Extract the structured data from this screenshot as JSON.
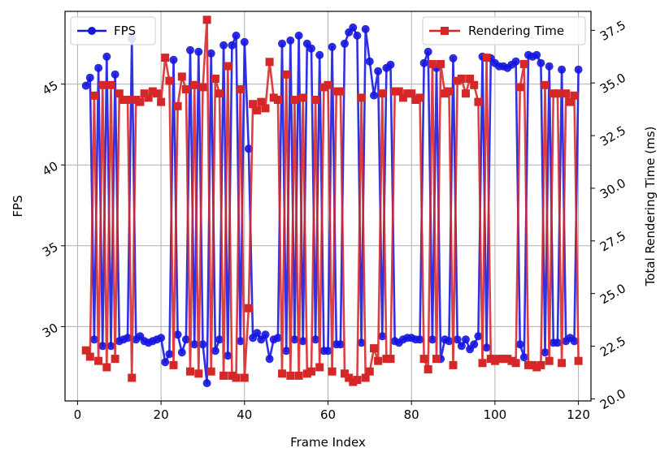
{
  "chart_data": {
    "type": "line",
    "title": "",
    "xlabel": "Frame Index",
    "ylabel_left": "FPS",
    "ylabel_right": "Total Rendering Time (ms)",
    "xlim": [
      -3,
      123
    ],
    "ylim_left": [
      25.4,
      49.5
    ],
    "ylim_right": [
      19.9,
      38.4
    ],
    "xticks": [
      0,
      20,
      40,
      60,
      80,
      100,
      120
    ],
    "yticks_left": [
      30,
      35,
      40,
      45
    ],
    "yticks_right": [
      20.0,
      22.5,
      25.0,
      27.5,
      30.0,
      32.5,
      35.0,
      37.5
    ],
    "xtick_labels": [
      "0",
      "20",
      "40",
      "60",
      "80",
      "100",
      "120"
    ],
    "ytick_labels_left": [
      "30",
      "35",
      "40",
      "45"
    ],
    "ytick_labels_right": [
      "20.0",
      "22.5",
      "25.0",
      "27.5",
      "30.0",
      "32.5",
      "35.0",
      "37.5"
    ],
    "grid": true,
    "series": [
      {
        "name": "FPS",
        "axis": "left",
        "color": "#1515e0",
        "marker": "circle",
        "x": [
          2,
          3,
          4,
          5,
          6,
          7,
          8,
          9,
          10,
          11,
          12,
          13,
          14,
          15,
          16,
          17,
          18,
          19,
          20,
          21,
          22,
          23,
          24,
          25,
          26,
          27,
          28,
          29,
          30,
          31,
          32,
          33,
          34,
          35,
          36,
          37,
          38,
          39,
          40,
          41,
          42,
          43,
          44,
          45,
          46,
          47,
          48,
          49,
          50,
          51,
          52,
          53,
          54,
          55,
          56,
          57,
          58,
          59,
          60,
          61,
          62,
          63,
          64,
          65,
          66,
          67,
          68,
          69,
          70,
          71,
          72,
          73,
          74,
          75,
          76,
          77,
          78,
          79,
          80,
          81,
          82,
          83,
          84,
          85,
          86,
          87,
          88,
          89,
          90,
          91,
          92,
          93,
          94,
          95,
          96,
          97,
          98,
          99,
          100,
          101,
          102,
          103,
          104,
          105,
          106,
          107,
          108,
          109,
          110,
          111,
          112,
          113,
          114,
          115,
          116,
          117,
          118,
          119,
          120
        ],
        "values": [
          44.9,
          45.4,
          29.2,
          46.0,
          28.8,
          46.7,
          28.8,
          45.6,
          29.1,
          29.2,
          29.3,
          47.8,
          29.2,
          29.4,
          29.1,
          29.0,
          29.1,
          29.2,
          29.3,
          27.8,
          28.3,
          46.5,
          29.5,
          28.4,
          29.2,
          47.1,
          28.9,
          47.0,
          28.9,
          26.5,
          46.9,
          28.5,
          29.2,
          47.4,
          28.2,
          47.4,
          48.0,
          29.1,
          47.6,
          41.0,
          29.3,
          29.6,
          29.2,
          29.5,
          28.0,
          29.2,
          29.3,
          47.5,
          28.5,
          47.7,
          29.2,
          48.0,
          29.1,
          47.5,
          47.2,
          29.2,
          46.8,
          28.5,
          28.5,
          47.3,
          28.9,
          28.9,
          47.5,
          48.2,
          48.5,
          48.0,
          29.0,
          48.4,
          46.4,
          44.3,
          45.8,
          29.4,
          46.0,
          46.2,
          29.1,
          29.0,
          29.2,
          29.3,
          29.3,
          29.2,
          29.2,
          46.3,
          47.0,
          29.2,
          46.0,
          28.0,
          29.2,
          29.1,
          46.6,
          29.2,
          28.8,
          29.2,
          28.6,
          28.9,
          29.4,
          46.7,
          28.7,
          46.6,
          46.3,
          46.1,
          46.1,
          46.0,
          46.2,
          46.4,
          28.9,
          28.1,
          46.8,
          46.7,
          46.8,
          46.3,
          28.4,
          46.1,
          29.0,
          29.0,
          45.9,
          29.1,
          29.3,
          29.1,
          45.9
        ]
      },
      {
        "name": "Rendering Time",
        "axis": "right",
        "color": "#d62728",
        "marker": "square",
        "x": [
          2,
          3,
          4,
          5,
          6,
          7,
          8,
          9,
          10,
          11,
          12,
          13,
          14,
          15,
          16,
          17,
          18,
          19,
          20,
          21,
          22,
          23,
          24,
          25,
          26,
          27,
          28,
          29,
          30,
          31,
          32,
          33,
          34,
          35,
          36,
          37,
          38,
          39,
          40,
          41,
          42,
          43,
          44,
          45,
          46,
          47,
          48,
          49,
          50,
          51,
          52,
          53,
          54,
          55,
          56,
          57,
          58,
          59,
          60,
          61,
          62,
          63,
          64,
          65,
          66,
          67,
          68,
          69,
          70,
          71,
          72,
          73,
          74,
          75,
          76,
          77,
          78,
          79,
          80,
          81,
          82,
          83,
          84,
          85,
          86,
          87,
          88,
          89,
          90,
          91,
          92,
          93,
          94,
          95,
          96,
          97,
          98,
          99,
          100,
          101,
          102,
          103,
          104,
          105,
          106,
          107,
          108,
          109,
          110,
          111,
          112,
          113,
          114,
          115,
          116,
          117,
          118,
          119,
          120
        ],
        "values": [
          22.3,
          22.0,
          34.4,
          21.8,
          34.9,
          21.5,
          34.9,
          21.9,
          34.5,
          34.2,
          34.2,
          21.0,
          34.2,
          34.1,
          34.5,
          34.3,
          34.6,
          34.5,
          34.1,
          36.2,
          35.1,
          21.6,
          33.9,
          35.3,
          34.7,
          21.3,
          34.9,
          21.2,
          34.8,
          38.0,
          21.3,
          35.2,
          34.5,
          21.1,
          35.8,
          21.1,
          21.0,
          34.7,
          21.0,
          24.3,
          34.0,
          33.7,
          34.1,
          33.8,
          36.0,
          34.3,
          34.2,
          21.2,
          35.4,
          21.1,
          34.2,
          21.1,
          34.3,
          21.2,
          21.3,
          34.2,
          21.5,
          34.8,
          34.9,
          21.3,
          34.6,
          34.6,
          21.2,
          21.0,
          20.8,
          20.9,
          34.3,
          21.0,
          21.3,
          22.4,
          21.8,
          34.5,
          21.9,
          21.9,
          34.6,
          34.6,
          34.3,
          34.5,
          34.5,
          34.2,
          34.3,
          21.9,
          21.4,
          35.9,
          21.9,
          35.9,
          34.5,
          34.6,
          21.6,
          35.1,
          35.2,
          34.5,
          35.2,
          34.9,
          34.1,
          21.7,
          36.2,
          21.9,
          21.8,
          21.9,
          21.9,
          21.9,
          21.8,
          21.7,
          34.8,
          35.9,
          21.6,
          21.6,
          21.5,
          21.6,
          34.9,
          21.8,
          34.5,
          34.5,
          21.7,
          34.5,
          34.1,
          34.4,
          21.8
        ]
      }
    ],
    "legend": [
      {
        "label": "FPS",
        "position": "top-left"
      },
      {
        "label": "Rendering Time",
        "position": "top-right"
      }
    ]
  }
}
